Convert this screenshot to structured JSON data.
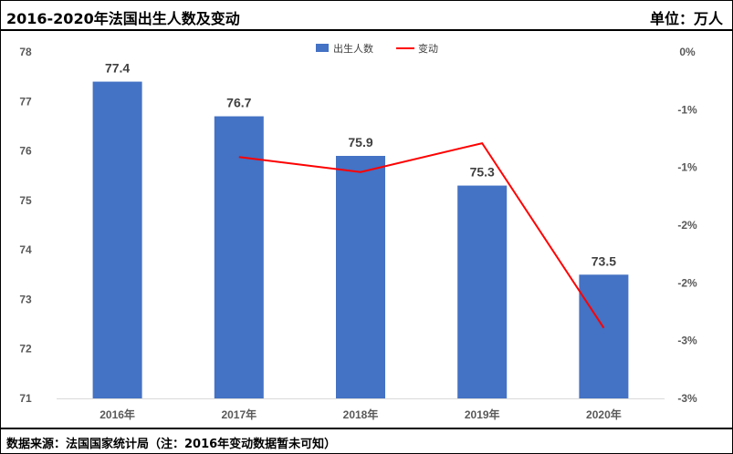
{
  "header": {
    "title": "2016-2020年法国出生人数及变动",
    "unit": "单位：万人"
  },
  "footer": {
    "source": "数据来源：法国国家统计局（注：2016年变动数据暂未可知）"
  },
  "colors": {
    "bar": "#4472C4",
    "line": "#FF0000",
    "axis_text": "#595959"
  },
  "chart_data": {
    "type": "bar",
    "categories": [
      "2016年",
      "2017年",
      "2018年",
      "2019年",
      "2020年"
    ],
    "series": [
      {
        "name": "出生人数",
        "type": "bar",
        "axis": "left",
        "values": [
          77.4,
          76.7,
          75.9,
          75.3,
          73.5
        ],
        "labels": [
          "77.4",
          "76.7",
          "75.9",
          "75.3",
          "73.5"
        ]
      },
      {
        "name": "变动",
        "type": "line",
        "axis": "right",
        "values": [
          null,
          -0.91,
          -1.04,
          -0.79,
          -2.39
        ]
      }
    ],
    "y_left": {
      "min": 71,
      "max": 78,
      "ticks": [
        78,
        77,
        76,
        75,
        74,
        73,
        72,
        71
      ]
    },
    "y_right": {
      "min": -3.0,
      "max": 0.0,
      "ticks": [
        0,
        -0.5,
        -1.0,
        -1.5,
        -2.0,
        -2.5,
        -3.0
      ],
      "tick_labels": [
        "0%",
        "-1%",
        "-1%",
        "-2%",
        "-2%",
        "-3%",
        "-3%"
      ]
    },
    "legend_position": "top",
    "grid": false
  }
}
